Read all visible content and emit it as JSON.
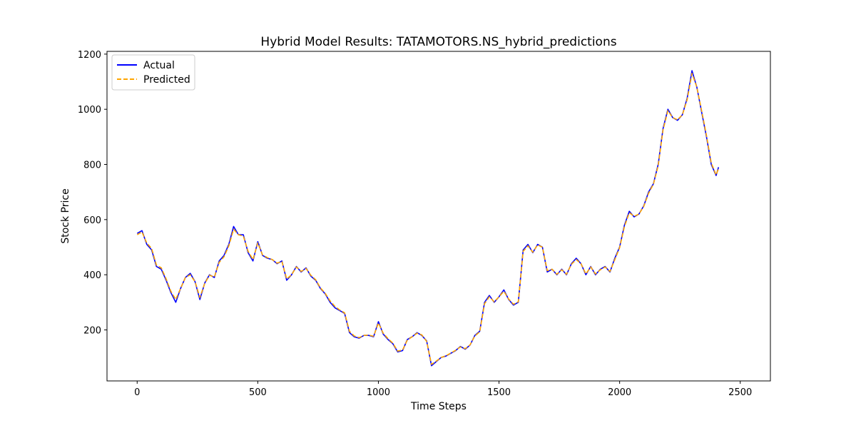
{
  "chart_data": {
    "type": "line",
    "title": "Hybrid Model Results: TATAMOTORS.NS_hybrid_predictions",
    "xlabel": "Time Steps",
    "ylabel": "Stock Price",
    "xlim": [
      -125,
      2625
    ],
    "ylim": [
      15,
      1210
    ],
    "xticks": [
      0,
      500,
      1000,
      1500,
      2000,
      2500
    ],
    "yticks": [
      200,
      400,
      600,
      800,
      1000,
      1200
    ],
    "grid": false,
    "legend": "top-left",
    "series": [
      {
        "name": "Actual",
        "color": "#0000ff",
        "style": "solid",
        "x": [
          0,
          20,
          40,
          60,
          80,
          100,
          120,
          140,
          160,
          180,
          200,
          220,
          240,
          260,
          280,
          300,
          320,
          340,
          360,
          380,
          400,
          420,
          440,
          460,
          480,
          500,
          520,
          540,
          560,
          580,
          600,
          620,
          640,
          660,
          680,
          700,
          720,
          740,
          760,
          780,
          800,
          820,
          840,
          860,
          880,
          900,
          920,
          940,
          960,
          980,
          1000,
          1020,
          1040,
          1060,
          1080,
          1100,
          1120,
          1140,
          1160,
          1180,
          1200,
          1220,
          1240,
          1260,
          1280,
          1300,
          1320,
          1340,
          1360,
          1380,
          1400,
          1420,
          1440,
          1460,
          1480,
          1500,
          1520,
          1540,
          1560,
          1580,
          1600,
          1620,
          1640,
          1660,
          1680,
          1700,
          1720,
          1740,
          1760,
          1780,
          1800,
          1820,
          1840,
          1860,
          1880,
          1900,
          1920,
          1940,
          1960,
          1980,
          2000,
          2020,
          2040,
          2060,
          2080,
          2100,
          2120,
          2140,
          2160,
          2180,
          2200,
          2220,
          2240,
          2260,
          2280,
          2300,
          2320,
          2340,
          2360,
          2380,
          2400,
          2410
        ],
        "values": [
          550,
          560,
          510,
          490,
          430,
          420,
          380,
          335,
          300,
          350,
          390,
          405,
          375,
          310,
          370,
          400,
          390,
          450,
          470,
          510,
          575,
          545,
          545,
          480,
          450,
          520,
          470,
          460,
          455,
          440,
          450,
          380,
          400,
          430,
          410,
          425,
          395,
          380,
          350,
          330,
          300,
          280,
          270,
          260,
          190,
          175,
          170,
          180,
          180,
          175,
          230,
          185,
          165,
          150,
          120,
          125,
          165,
          175,
          190,
          180,
          160,
          70,
          85,
          100,
          105,
          115,
          125,
          140,
          130,
          145,
          180,
          195,
          300,
          325,
          300,
          320,
          345,
          310,
          290,
          300,
          490,
          510,
          480,
          510,
          500,
          410,
          420,
          400,
          420,
          400,
          440,
          460,
          440,
          400,
          430,
          400,
          420,
          430,
          410,
          460,
          500,
          580,
          630,
          610,
          620,
          650,
          700,
          730,
          800,
          930,
          1000,
          970,
          960,
          980,
          1040,
          1140,
          1080,
          990,
          900,
          800,
          760,
          790
        ]
      },
      {
        "name": "Predicted",
        "color": "#ffa500",
        "style": "dashed",
        "x": [
          0,
          20,
          40,
          60,
          80,
          100,
          120,
          140,
          160,
          180,
          200,
          220,
          240,
          260,
          280,
          300,
          320,
          340,
          360,
          380,
          400,
          420,
          440,
          460,
          480,
          500,
          520,
          540,
          560,
          580,
          600,
          620,
          640,
          660,
          680,
          700,
          720,
          740,
          760,
          780,
          800,
          820,
          840,
          860,
          880,
          900,
          920,
          940,
          960,
          980,
          1000,
          1020,
          1040,
          1060,
          1080,
          1100,
          1120,
          1140,
          1160,
          1180,
          1200,
          1220,
          1240,
          1260,
          1280,
          1300,
          1320,
          1340,
          1360,
          1380,
          1400,
          1420,
          1440,
          1460,
          1480,
          1500,
          1520,
          1540,
          1560,
          1580,
          1600,
          1620,
          1640,
          1660,
          1680,
          1700,
          1720,
          1740,
          1760,
          1780,
          1800,
          1820,
          1840,
          1860,
          1880,
          1900,
          1920,
          1940,
          1960,
          1980,
          2000,
          2020,
          2040,
          2060,
          2080,
          2100,
          2120,
          2140,
          2160,
          2180,
          2200,
          2220,
          2240,
          2260,
          2280,
          2300,
          2320,
          2340,
          2360,
          2380,
          2400,
          2410
        ],
        "values": [
          545,
          555,
          515,
          495,
          435,
          425,
          385,
          340,
          310,
          350,
          390,
          400,
          375,
          318,
          368,
          398,
          392,
          445,
          465,
          505,
          565,
          545,
          540,
          485,
          455,
          515,
          472,
          462,
          455,
          442,
          448,
          385,
          400,
          428,
          412,
          423,
          398,
          382,
          352,
          332,
          305,
          285,
          272,
          262,
          195,
          178,
          172,
          180,
          181,
          177,
          225,
          188,
          168,
          152,
          123,
          127,
          163,
          175,
          188,
          182,
          158,
          75,
          87,
          100,
          106,
          116,
          126,
          138,
          132,
          146,
          178,
          193,
          295,
          320,
          302,
          320,
          340,
          312,
          293,
          302,
          485,
          505,
          482,
          508,
          500,
          415,
          420,
          402,
          418,
          402,
          438,
          455,
          440,
          403,
          428,
          403,
          418,
          428,
          412,
          455,
          498,
          575,
          625,
          612,
          620,
          648,
          695,
          728,
          795,
          925,
          995,
          970,
          962,
          980,
          1035,
          1130,
          1080,
          995,
          905,
          805,
          762,
          785
        ]
      }
    ]
  }
}
